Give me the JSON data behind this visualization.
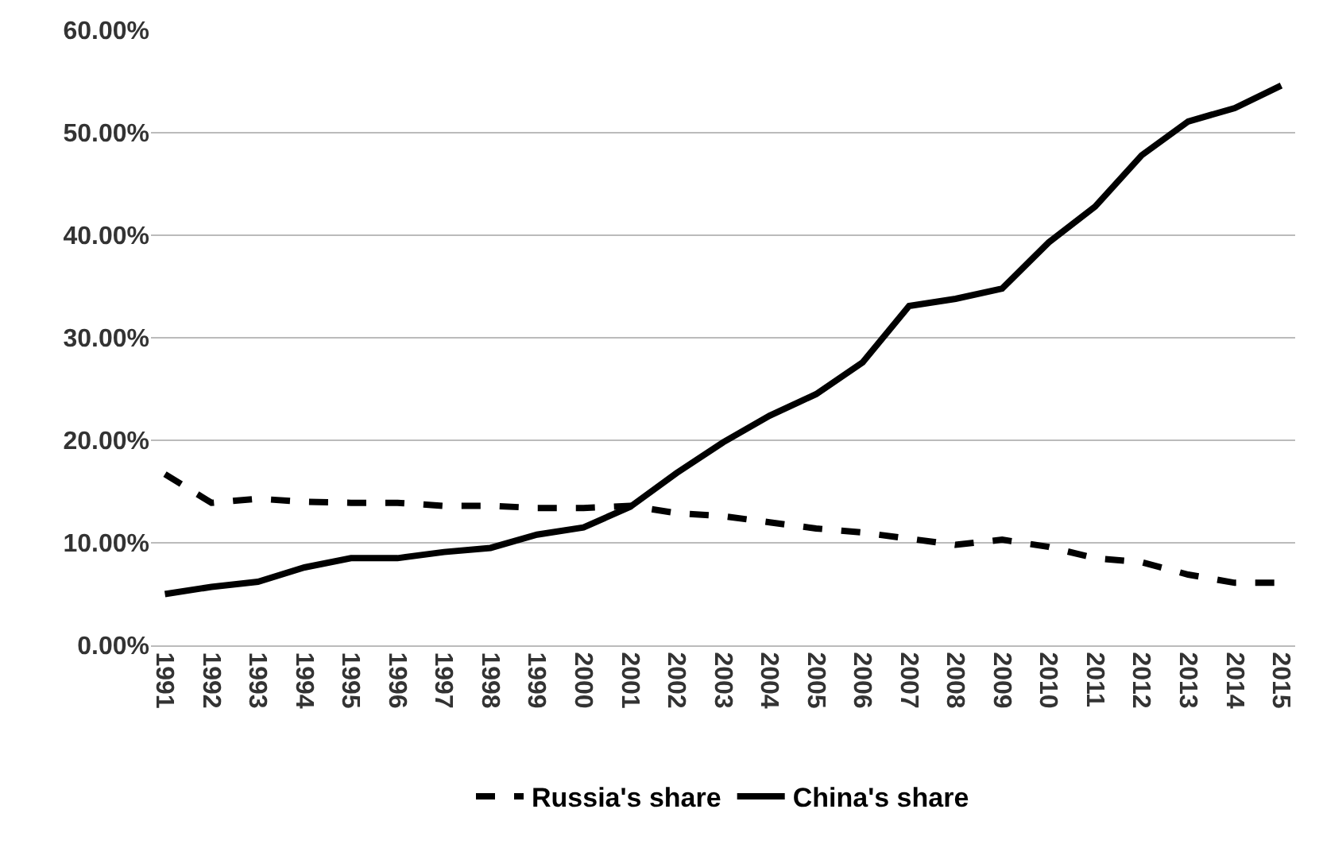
{
  "chart_data": {
    "type": "line",
    "categories": [
      "1991",
      "1992",
      "1993",
      "1994",
      "1995",
      "1996",
      "1997",
      "1998",
      "1999",
      "2000",
      "2001",
      "2002",
      "2003",
      "2004",
      "2005",
      "2006",
      "2007",
      "2008",
      "2009",
      "2010",
      "2011",
      "2012",
      "2013",
      "2014",
      "2015"
    ],
    "series": [
      {
        "name": "Russia's share",
        "color": "#000000",
        "line_style": "dashed",
        "values": [
          16.7,
          13.9,
          14.3,
          14.0,
          13.9,
          13.9,
          13.6,
          13.6,
          13.4,
          13.4,
          13.6,
          12.9,
          12.6,
          12.0,
          11.4,
          11.0,
          10.4,
          9.8,
          10.3,
          9.6,
          8.5,
          8.1,
          6.9,
          6.1,
          6.1
        ]
      },
      {
        "name": "China's share",
        "color": "#000000",
        "line_style": "solid",
        "values": [
          5.0,
          5.7,
          6.2,
          7.6,
          8.5,
          8.5,
          9.1,
          9.5,
          10.8,
          11.5,
          13.5,
          16.8,
          19.8,
          22.4,
          24.5,
          27.6,
          33.1,
          33.8,
          34.8,
          39.3,
          42.8,
          47.8,
          51.1,
          52.4,
          54.6
        ]
      }
    ],
    "ylim": [
      0,
      60
    ],
    "yticks": [
      {
        "value": 0,
        "label": "0.00%"
      },
      {
        "value": 10,
        "label": "10.00%"
      },
      {
        "value": 20,
        "label": "20.00%"
      },
      {
        "value": 30,
        "label": "30.00%"
      },
      {
        "value": 40,
        "label": "40.00%"
      },
      {
        "value": 50,
        "label": "50.00%"
      },
      {
        "value": 60,
        "label": "60.00%"
      }
    ],
    "grid": "y",
    "legend": "bottom",
    "marker": "none"
  }
}
